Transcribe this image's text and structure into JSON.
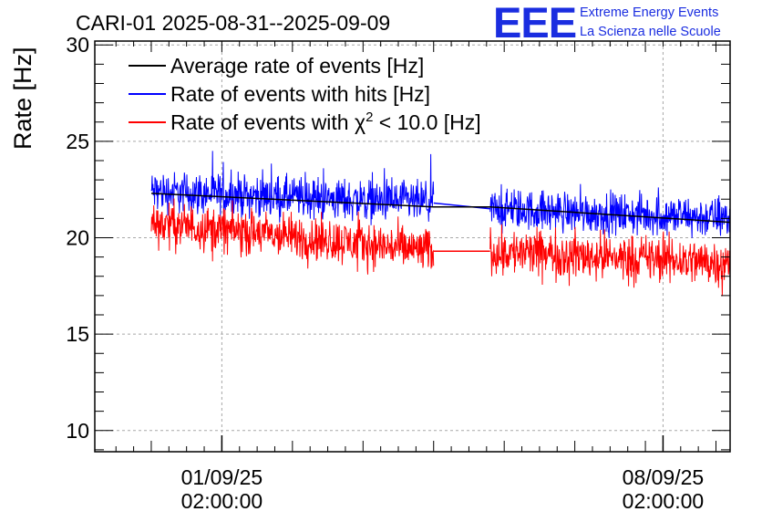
{
  "header": {
    "logo_text": "EEE",
    "logo_line1": "Extreme Energy Events",
    "logo_line2": "La Scienza nelle Scuole"
  },
  "chart_data": {
    "type": "line",
    "title": "CARI-01 2025-08-31--2025-09-09",
    "ylabel": "Rate [Hz]",
    "xlabel": "",
    "ylim": [
      8.9,
      30.2
    ],
    "yticks": [
      10,
      15,
      20,
      25,
      30
    ],
    "ytick_labels": [
      "10",
      "15",
      "20",
      "25",
      "30"
    ],
    "xlim_days": [
      0,
      9.0
    ],
    "xticks": [
      {
        "day": 1.8,
        "date": "01/09/25",
        "time": "02:00:00"
      },
      {
        "day": 8.05,
        "date": "08/09/25",
        "time": "02:00:00"
      }
    ],
    "grid": true,
    "legend_position": "top-left",
    "legend": {
      "average": "Average rate of events [Hz]",
      "hits": "Rate of events with hits [Hz]",
      "chi2_prefix": "Rate of events with ",
      "chi2_symbol": "χ",
      "chi2_sup": "2",
      "chi2_suffix": " < 10.0 [Hz]"
    },
    "series": [
      {
        "name": "Average rate of events [Hz]",
        "color": "#000000",
        "x_days": [
          0.8,
          4.8,
          5.6,
          9.0
        ],
        "values": [
          22.3,
          21.6,
          21.6,
          20.8
        ]
      },
      {
        "name": "Rate of events with hits [Hz]",
        "color": "#0000ff",
        "segments": [
          {
            "x_start": 0.8,
            "x_end": 4.8,
            "mean_start": 22.4,
            "mean_end": 21.8,
            "min": 20.4,
            "max": 24.5
          },
          {
            "x_start": 5.6,
            "x_end": 9.0,
            "mean_start": 21.5,
            "mean_end": 21.0,
            "min": 19.0,
            "max": 23.0
          }
        ]
      },
      {
        "name": "Rate of events with χ2 < 10.0 [Hz]",
        "color": "#ff0000",
        "segments": [
          {
            "x_start": 0.8,
            "x_end": 4.8,
            "mean_start": 20.8,
            "mean_end": 19.3,
            "min": 17.7,
            "max": 22.1
          },
          {
            "x_start": 5.6,
            "x_end": 9.0,
            "mean_start": 19.3,
            "mean_end": 18.7,
            "min": 16.1,
            "max": 20.7
          }
        ]
      }
    ]
  }
}
